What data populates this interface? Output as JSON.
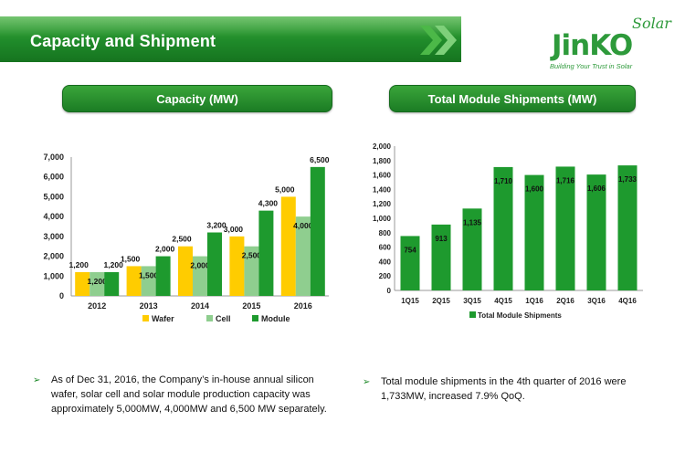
{
  "header": {
    "title": "Capacity and Shipment"
  },
  "logo": {
    "brand": "JinKO",
    "sub": "Solar",
    "tagline": "Building Your Trust in Solar"
  },
  "sections": {
    "capacity_title": "Capacity (MW)",
    "shipments_title": "Total Module Shipments (MW)"
  },
  "colors": {
    "wafer": "#ffcc00",
    "cell": "#8fce8f",
    "module": "#1e9a2e",
    "shipments": "#1e9a2e",
    "header_green": "#1f8a2a"
  },
  "chart_data": [
    {
      "type": "bar",
      "title": "Capacity (MW)",
      "categories": [
        "2012",
        "2013",
        "2014",
        "2015",
        "2016"
      ],
      "series": [
        {
          "name": "Wafer",
          "values": [
            1200,
            1500,
            2500,
            3000,
            5000
          ],
          "labels": [
            "1,200",
            "1,500",
            "2,500",
            "3,000",
            "5,000"
          ]
        },
        {
          "name": "Cell",
          "values": [
            1200,
            1500,
            2000,
            2500,
            4000
          ],
          "labels": [
            "1,200",
            "1,500",
            "2,000",
            "2,500",
            "4,000"
          ]
        },
        {
          "name": "Module",
          "values": [
            1200,
            2000,
            3200,
            4300,
            6500
          ],
          "labels": [
            "1,200",
            "2,000",
            "3,200",
            "4,300",
            "6,500"
          ]
        }
      ],
      "ylim": [
        0,
        7000
      ],
      "yticks": [
        "0",
        "1,000",
        "2,000",
        "3,000",
        "4,000",
        "5,000",
        "6,000",
        "7,000"
      ],
      "legend": "bottom"
    },
    {
      "type": "bar",
      "title": "Total Module Shipments (MW)",
      "categories": [
        "1Q15",
        "2Q15",
        "3Q15",
        "4Q15",
        "1Q16",
        "2Q16",
        "3Q16",
        "4Q16"
      ],
      "series": [
        {
          "name": "Total Module Shipments",
          "values": [
            754,
            913,
            1135,
            1710,
            1600,
            1716,
            1606,
            1733
          ],
          "labels": [
            "754",
            "913",
            "1,135",
            "1,710",
            "1,600",
            "1,716",
            "1,606",
            "1,733"
          ]
        }
      ],
      "ylim": [
        0,
        2000
      ],
      "yticks": [
        "0",
        "200",
        "400",
        "600",
        "800",
        "1,000",
        "1,200",
        "1,400",
        "1,600",
        "1,800",
        "2,000"
      ],
      "legend": "bottom"
    }
  ],
  "bullets": [
    "As of Dec 31, 2016, the Company’s in-house annual silicon wafer, solar cell and solar module production capacity was approximately 5,000MW, 4,000MW and 6,500 MW separately.",
    "Total module shipments in the 4th quarter of 2016 were 1,733MW, increased 7.9% QoQ."
  ]
}
